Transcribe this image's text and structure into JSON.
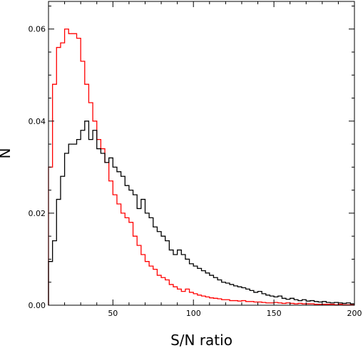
{
  "chart_data": {
    "type": "histogram",
    "xlabel": "S/N ratio",
    "ylabel": "N",
    "xlim": [
      10,
      200
    ],
    "ylim": [
      0,
      0.066
    ],
    "xticks": [
      50,
      100,
      150,
      200
    ],
    "xtick_labels": [
      "50",
      "100",
      "150",
      "200"
    ],
    "yticks": [
      0,
      0.02,
      0.04,
      0.06
    ],
    "ytick_labels": [
      "0.00",
      "0.02",
      "0.04",
      "0.06"
    ],
    "grid": false,
    "bin_width": 2.5,
    "bin_start": 10,
    "series": [
      {
        "color": "#ff0000",
        "values": [
          0.03,
          0.048,
          0.056,
          0.057,
          0.06,
          0.059,
          0.059,
          0.058,
          0.053,
          0.048,
          0.044,
          0.04,
          0.036,
          0.034,
          0.031,
          0.027,
          0.024,
          0.022,
          0.02,
          0.019,
          0.018,
          0.015,
          0.013,
          0.011,
          0.0095,
          0.0085,
          0.0078,
          0.0065,
          0.006,
          0.0055,
          0.0045,
          0.004,
          0.0035,
          0.003,
          0.0035,
          0.0028,
          0.0025,
          0.0022,
          0.002,
          0.0018,
          0.0016,
          0.0015,
          0.0014,
          0.0012,
          0.0012,
          0.001,
          0.001,
          0.0009,
          0.001,
          0.0008,
          0.0008,
          0.0007,
          0.0007,
          0.0006,
          0.0005,
          0.0005,
          0.0006,
          0.0005,
          0.0004,
          0.0005,
          0.0004,
          0.0003,
          0.0004,
          0.0003,
          0.0003,
          0.0003,
          0.0002,
          0.0002,
          0.0002,
          0.0002,
          0.0002,
          0.0001,
          0.0002,
          0.0001,
          0.0001,
          0.0001
        ]
      },
      {
        "color": "#000000",
        "values": [
          0.0095,
          0.014,
          0.023,
          0.028,
          0.033,
          0.035,
          0.035,
          0.036,
          0.038,
          0.04,
          0.036,
          0.038,
          0.034,
          0.033,
          0.031,
          0.032,
          0.03,
          0.029,
          0.028,
          0.026,
          0.025,
          0.024,
          0.021,
          0.023,
          0.02,
          0.019,
          0.017,
          0.016,
          0.015,
          0.014,
          0.012,
          0.011,
          0.012,
          0.011,
          0.01,
          0.009,
          0.0085,
          0.008,
          0.0075,
          0.007,
          0.0065,
          0.006,
          0.0055,
          0.005,
          0.0048,
          0.0045,
          0.0042,
          0.004,
          0.0038,
          0.0035,
          0.0032,
          0.0028,
          0.003,
          0.0025,
          0.0022,
          0.002,
          0.0018,
          0.002,
          0.0015,
          0.0013,
          0.0015,
          0.0012,
          0.001,
          0.0012,
          0.0009,
          0.001,
          0.0008,
          0.0007,
          0.0008,
          0.0006,
          0.0005,
          0.0006,
          0.0005,
          0.0004,
          0.0005,
          0.0003
        ]
      }
    ]
  }
}
